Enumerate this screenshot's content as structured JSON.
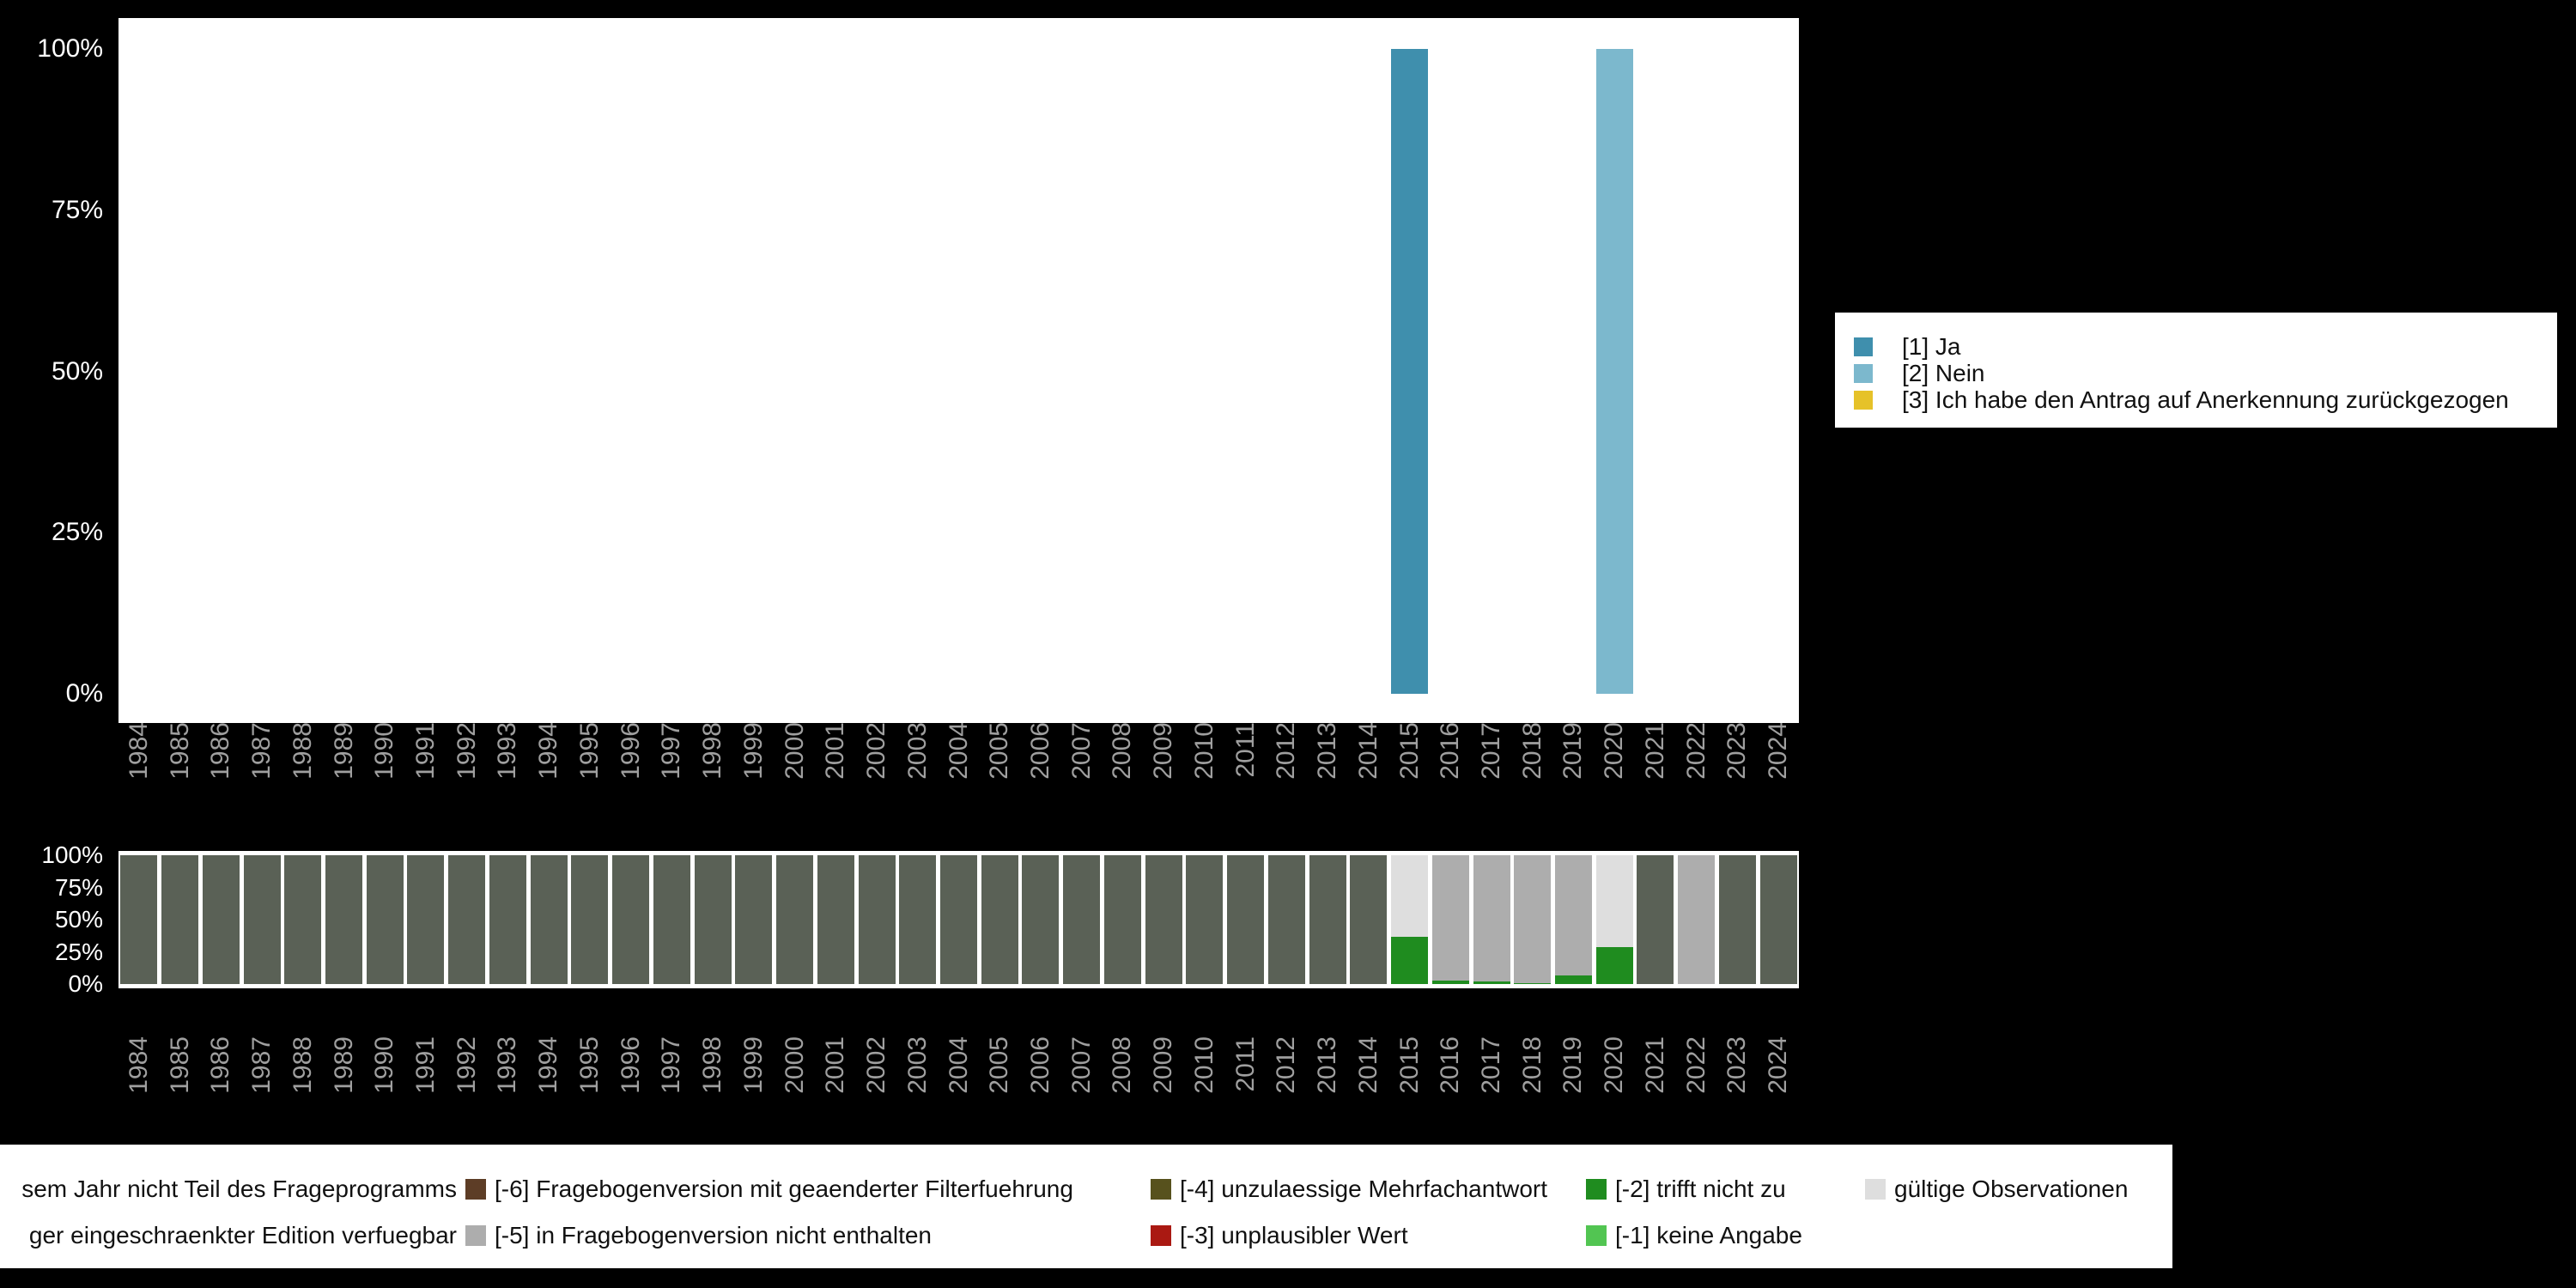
{
  "colors": {
    "background": "#000000",
    "plot_bg": "#ffffff",
    "axis_tick_text": "#ffffff",
    "year_tick_text": "#9f9f9f",
    "legend_bg": "#ffffff",
    "legend_text": "#111111",
    "ja": "#3f8fad",
    "nein": "#7cb8cd",
    "zurueckgezogen": "#e6c229",
    "m8": "#5a6156",
    "m6": "#5d3d26",
    "m5": "#adadad",
    "m4": "#57511d",
    "m3": "#aa1912",
    "m2": "#1f8c1f",
    "m1": "#52c552",
    "valid": "#dedede"
  },
  "y_ticks": [
    {
      "label": "0%",
      "v": 0
    },
    {
      "label": "25%",
      "v": 25
    },
    {
      "label": "50%",
      "v": 50
    },
    {
      "label": "75%",
      "v": 75
    },
    {
      "label": "100%",
      "v": 100
    }
  ],
  "top_legend": {
    "items": [
      {
        "label": "[1] Ja",
        "color_key": "ja"
      },
      {
        "label": "[2] Nein",
        "color_key": "nein"
      },
      {
        "label": "[3] Ich habe den Antrag auf Anerkennung zurückgezogen",
        "color_key": "zurueckgezogen"
      }
    ]
  },
  "bottom_legend": {
    "columns": [
      {
        "rows": [
          {
            "label": "sem Jahr nicht Teil des Frageprogramms",
            "clipped_left": true
          },
          {
            "label": "ger eingeschraenkter Edition verfuegbar",
            "clipped_left": true
          }
        ]
      },
      {
        "rows": [
          {
            "label": "[-6] Fragebogenversion mit geaenderter Filterfuehrung",
            "color_key": "m6"
          },
          {
            "label": "[-5] in Fragebogenversion nicht enthalten",
            "color_key": "m5"
          }
        ]
      },
      {
        "rows": [
          {
            "label": "[-4] unzulaessige Mehrfachantwort",
            "color_key": "m4"
          },
          {
            "label": "[-3] unplausibler Wert",
            "color_key": "m3"
          }
        ]
      },
      {
        "rows": [
          {
            "label": "[-2] trifft nicht zu",
            "color_key": "m2"
          },
          {
            "label": "[-1] keine Angabe",
            "color_key": "m1"
          }
        ]
      },
      {
        "rows": [
          {
            "label": "gültige Observationen",
            "color_key": "valid"
          }
        ]
      }
    ]
  },
  "chart_data": [
    {
      "type": "bar",
      "title": "",
      "xlabel": "",
      "ylabel": "",
      "ylim": [
        0,
        100
      ],
      "yticks": [
        0,
        25,
        50,
        75,
        100
      ],
      "grid": false,
      "legend_position": "right",
      "categories": [
        "1984",
        "1985",
        "1986",
        "1987",
        "1988",
        "1989",
        "1990",
        "1991",
        "1992",
        "1993",
        "1994",
        "1995",
        "1996",
        "1997",
        "1998",
        "1999",
        "2000",
        "2001",
        "2002",
        "2003",
        "2004",
        "2005",
        "2006",
        "2007",
        "2008",
        "2009",
        "2010",
        "2011",
        "2012",
        "2013",
        "2014",
        "2015",
        "2016",
        "2017",
        "2018",
        "2019",
        "2020",
        "2021",
        "2022",
        "2023",
        "2024"
      ],
      "series": [
        {
          "name": "[1] Ja",
          "color_key": "ja",
          "values": {
            "2015": 100
          }
        },
        {
          "name": "[2] Nein",
          "color_key": "nein",
          "values": {
            "2020": 100
          }
        },
        {
          "name": "[3] Ich habe den Antrag auf Anerkennung zurückgezogen",
          "color_key": "zurueckgezogen",
          "values": {}
        }
      ]
    },
    {
      "type": "stacked-bar",
      "title": "",
      "ylim": [
        0,
        100
      ],
      "yticks": [
        0,
        25,
        50,
        75,
        100
      ],
      "categories": [
        "1984",
        "1985",
        "1986",
        "1987",
        "1988",
        "1989",
        "1990",
        "1991",
        "1992",
        "1993",
        "1994",
        "1995",
        "1996",
        "1997",
        "1998",
        "1999",
        "2000",
        "2001",
        "2002",
        "2003",
        "2004",
        "2005",
        "2006",
        "2007",
        "2008",
        "2009",
        "2010",
        "2011",
        "2012",
        "2013",
        "2014",
        "2015",
        "2016",
        "2017",
        "2018",
        "2019",
        "2020",
        "2021",
        "2022",
        "2023",
        "2024"
      ],
      "stacks": [
        [
          [
            "m8",
            100
          ]
        ],
        [
          [
            "m8",
            100
          ]
        ],
        [
          [
            "m8",
            100
          ]
        ],
        [
          [
            "m8",
            100
          ]
        ],
        [
          [
            "m8",
            100
          ]
        ],
        [
          [
            "m8",
            100
          ]
        ],
        [
          [
            "m8",
            100
          ]
        ],
        [
          [
            "m8",
            100
          ]
        ],
        [
          [
            "m8",
            100
          ]
        ],
        [
          [
            "m8",
            100
          ]
        ],
        [
          [
            "m8",
            100
          ]
        ],
        [
          [
            "m8",
            100
          ]
        ],
        [
          [
            "m8",
            100
          ]
        ],
        [
          [
            "m8",
            100
          ]
        ],
        [
          [
            "m8",
            100
          ]
        ],
        [
          [
            "m8",
            100
          ]
        ],
        [
          [
            "m8",
            100
          ]
        ],
        [
          [
            "m8",
            100
          ]
        ],
        [
          [
            "m8",
            100
          ]
        ],
        [
          [
            "m8",
            100
          ]
        ],
        [
          [
            "m8",
            100
          ]
        ],
        [
          [
            "m8",
            100
          ]
        ],
        [
          [
            "m8",
            100
          ]
        ],
        [
          [
            "m8",
            100
          ]
        ],
        [
          [
            "m8",
            100
          ]
        ],
        [
          [
            "m8",
            100
          ]
        ],
        [
          [
            "m8",
            100
          ]
        ],
        [
          [
            "m8",
            100
          ]
        ],
        [
          [
            "m8",
            100
          ]
        ],
        [
          [
            "m8",
            100
          ]
        ],
        [
          [
            "m8",
            100
          ]
        ],
        [
          [
            "m2",
            37
          ],
          [
            "valid",
            63
          ]
        ],
        [
          [
            "m2",
            3
          ],
          [
            "m5",
            97
          ]
        ],
        [
          [
            "m2",
            2
          ],
          [
            "m5",
            98
          ]
        ],
        [
          [
            "m2",
            1
          ],
          [
            "m5",
            99
          ]
        ],
        [
          [
            "m2",
            7
          ],
          [
            "m5",
            93
          ]
        ],
        [
          [
            "m2",
            29
          ],
          [
            "valid",
            71
          ]
        ],
        [
          [
            "m8",
            100
          ]
        ],
        [
          [
            "m5",
            100
          ]
        ],
        [
          [
            "m8",
            100
          ]
        ],
        [
          [
            "m8",
            100
          ]
        ]
      ]
    }
  ]
}
